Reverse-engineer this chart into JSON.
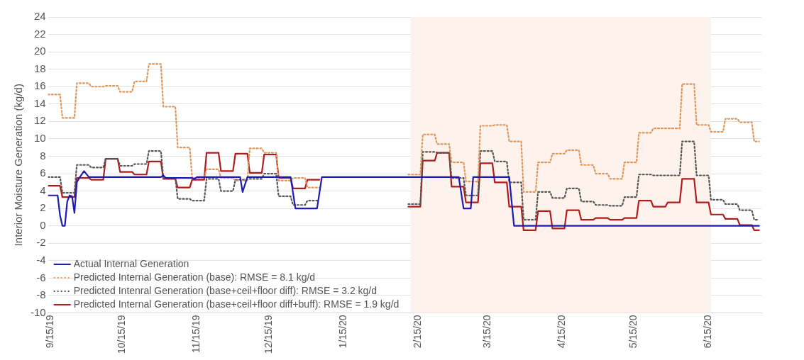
{
  "chart_data": {
    "type": "line",
    "ylabel": "Interior Moisture Generation (kg/d)",
    "xlim": [
      "2019-09-14",
      "2020-07-07"
    ],
    "xticks": [
      {
        "value": "2019-09-15",
        "label": "9/15/19"
      },
      {
        "value": "2019-10-15",
        "label": "10/15/19"
      },
      {
        "value": "2019-11-15",
        "label": "11/15/19"
      },
      {
        "value": "2019-12-15",
        "label": "12/15/19"
      },
      {
        "value": "2020-01-15",
        "label": "1/15/20"
      },
      {
        "value": "2020-02-15",
        "label": "2/15/20"
      },
      {
        "value": "2020-03-15",
        "label": "3/15/20"
      },
      {
        "value": "2020-04-15",
        "label": "4/15/20"
      },
      {
        "value": "2020-05-15",
        "label": "5/15/20"
      },
      {
        "value": "2020-06-15",
        "label": "6/15/20"
      }
    ],
    "ylim": [
      -10,
      24
    ],
    "yticks": [
      -10,
      -8,
      -6,
      -4,
      -2,
      0,
      2,
      4,
      6,
      8,
      10,
      12,
      14,
      16,
      18,
      20,
      22,
      24
    ],
    "grid": "y",
    "legend": "bottom left",
    "marker": "none",
    "bands": [
      {
        "axis": "x",
        "from": "2020-02-12",
        "to": "2020-06-16",
        "color": "#fdf3ec"
      }
    ],
    "series": [
      {
        "name": "Actual Internal Generation",
        "color": "#1c1cb4",
        "line_style": "solid",
        "x": [
          "2019-09-14",
          "2019-09-18",
          "2019-09-19",
          "2019-09-20",
          "2019-09-21",
          "2019-09-22",
          "2019-09-23",
          "2019-09-24",
          "2019-09-25",
          "2019-09-26",
          "2019-09-27",
          "2019-09-29",
          "2019-10-01",
          "2019-10-31",
          "2019-11-01",
          "2019-11-02",
          "2019-11-13",
          "2019-11-14",
          "2019-11-15",
          "2019-12-03",
          "2019-12-04",
          "2019-12-06",
          "2019-12-24",
          "2019-12-26",
          "2020-01-04",
          "2020-01-06",
          "2020-03-03",
          "2020-03-05",
          "2020-03-08",
          "2020-03-09",
          "2020-03-24",
          "2020-03-26",
          "2020-07-06"
        ],
        "values": [
          3.5,
          3.5,
          1.2,
          0,
          0,
          2.8,
          3.5,
          3.4,
          1.5,
          5.0,
          5.5,
          6.3,
          5.6,
          5.6,
          5.8,
          5.5,
          5.5,
          5.4,
          5.6,
          5.6,
          3.9,
          5.6,
          5.6,
          2.0,
          2.0,
          5.6,
          5.6,
          2.0,
          2.0,
          5.6,
          5.6,
          0,
          0
        ]
      },
      {
        "name": "Predicted Internal Generation (base): RMSE = 8.1 kg/d",
        "color": "#e0955a",
        "line_style": "dotted",
        "x": [
          "2019-09-14",
          "2019-09-19",
          "2019-09-20",
          "2019-09-25",
          "2019-09-26",
          "2019-10-01",
          "2019-10-02",
          "2019-10-07",
          "2019-10-08",
          "2019-10-13",
          "2019-10-14",
          "2019-10-19",
          "2019-10-20",
          "2019-10-25",
          "2019-10-26",
          "2019-10-31",
          "2019-11-01",
          "2019-11-06",
          "2019-11-07",
          "2019-11-12",
          "2019-11-13",
          "2019-11-18",
          "2019-11-19",
          "2019-11-24",
          "2019-11-25",
          "2019-11-30",
          "2019-12-01",
          "2019-12-06",
          "2019-12-07",
          "2019-12-12",
          "2019-12-13",
          "2019-12-18",
          "2019-12-19",
          "2019-12-24",
          "2019-12-25",
          "2019-12-30",
          "2019-12-31",
          "2020-01-05",
          "2020-01-20",
          "2020-02-11",
          "2020-02-16",
          "2020-02-17",
          "2020-02-22",
          "2020-02-23",
          "2020-02-28",
          "2020-02-29",
          "2020-03-05",
          "2020-03-06",
          "2020-03-11",
          "2020-03-12",
          "2020-03-17",
          "2020-03-18",
          "2020-03-23",
          "2020-03-24",
          "2020-03-29",
          "2020-03-30",
          "2020-04-04",
          "2020-04-05",
          "2020-04-10",
          "2020-04-11",
          "2020-04-16",
          "2020-04-17",
          "2020-04-22",
          "2020-04-23",
          "2020-04-28",
          "2020-04-29",
          "2020-05-04",
          "2020-05-05",
          "2020-05-10",
          "2020-05-11",
          "2020-05-16",
          "2020-05-17",
          "2020-05-22",
          "2020-05-23",
          "2020-05-28",
          "2020-05-29",
          "2020-06-03",
          "2020-06-04",
          "2020-06-09",
          "2020-06-10",
          "2020-06-15",
          "2020-06-16",
          "2020-06-21",
          "2020-06-22",
          "2020-06-27",
          "2020-06-28",
          "2020-07-03",
          "2020-07-04",
          "2020-07-06"
        ],
        "values": [
          15.1,
          15.1,
          12.4,
          12.4,
          16.4,
          16.4,
          16.0,
          16.0,
          16.1,
          16.1,
          15.4,
          15.4,
          16.6,
          16.6,
          18.6,
          18.6,
          13.7,
          13.7,
          9.0,
          9.0,
          5.5,
          5.5,
          6.5,
          6.5,
          5.5,
          5.5,
          5.2,
          5.2,
          8.9,
          8.9,
          8.4,
          8.4,
          5.2,
          5.2,
          5.5,
          5.5,
          4.4,
          4.4,
          null,
          5.9,
          5.9,
          10.5,
          10.5,
          9.4,
          9.4,
          7.3,
          7.3,
          5.1,
          5.1,
          11.5,
          11.5,
          11.6,
          11.6,
          9.7,
          9.7,
          3.9,
          3.9,
          7.3,
          7.3,
          8.3,
          8.3,
          8.7,
          8.7,
          7.0,
          7.0,
          6.0,
          6.0,
          5.4,
          5.4,
          7.3,
          7.3,
          10.7,
          10.7,
          11.2,
          11.2,
          11.2,
          11.2,
          16.3,
          16.3,
          11.6,
          11.6,
          10.8,
          10.8,
          12.3,
          12.3,
          11.9,
          11.9,
          9.7,
          9.7
        ]
      },
      {
        "name": "Predicted Intenral Generation (base+ceil+floor diff): RMSE = 3.2 kg/d",
        "color": "#555555",
        "line_style": "dotted",
        "x": [
          "2019-09-14",
          "2019-09-19",
          "2019-09-20",
          "2019-09-25",
          "2019-09-26",
          "2019-10-01",
          "2019-10-02",
          "2019-10-07",
          "2019-10-08",
          "2019-10-13",
          "2019-10-14",
          "2019-10-19",
          "2019-10-20",
          "2019-10-25",
          "2019-10-26",
          "2019-10-31",
          "2019-11-01",
          "2019-11-06",
          "2019-11-07",
          "2019-11-12",
          "2019-11-13",
          "2019-11-18",
          "2019-11-19",
          "2019-11-24",
          "2019-11-25",
          "2019-11-30",
          "2019-12-01",
          "2019-12-06",
          "2019-12-07",
          "2019-12-12",
          "2019-12-13",
          "2019-12-18",
          "2019-12-19",
          "2019-12-24",
          "2019-12-25",
          "2019-12-30",
          "2019-12-31",
          "2020-01-05",
          "2020-01-20",
          "2020-02-11",
          "2020-02-16",
          "2020-02-17",
          "2020-02-22",
          "2020-02-23",
          "2020-02-28",
          "2020-02-29",
          "2020-03-05",
          "2020-03-06",
          "2020-03-11",
          "2020-03-12",
          "2020-03-17",
          "2020-03-18",
          "2020-03-23",
          "2020-03-24",
          "2020-03-29",
          "2020-03-30",
          "2020-04-04",
          "2020-04-05",
          "2020-04-10",
          "2020-04-11",
          "2020-04-16",
          "2020-04-17",
          "2020-04-22",
          "2020-04-23",
          "2020-04-28",
          "2020-04-29",
          "2020-05-04",
          "2020-05-05",
          "2020-05-10",
          "2020-05-11",
          "2020-05-16",
          "2020-05-17",
          "2020-05-22",
          "2020-05-23",
          "2020-05-28",
          "2020-05-29",
          "2020-06-03",
          "2020-06-04",
          "2020-06-09",
          "2020-06-10",
          "2020-06-15",
          "2020-06-16",
          "2020-06-21",
          "2020-06-22",
          "2020-06-27",
          "2020-06-28",
          "2020-07-03",
          "2020-07-04",
          "2020-07-06"
        ],
        "values": [
          5.6,
          5.6,
          3.8,
          3.8,
          7.0,
          7.0,
          6.7,
          6.7,
          7.7,
          7.7,
          6.9,
          6.9,
          7.1,
          7.1,
          8.6,
          8.6,
          5.5,
          5.5,
          3.1,
          3.1,
          2.9,
          2.9,
          5.4,
          5.4,
          4.0,
          4.0,
          5.3,
          5.3,
          5.4,
          5.4,
          6.0,
          6.0,
          3.4,
          3.4,
          2.4,
          2.4,
          2.9,
          2.9,
          null,
          2.5,
          2.5,
          8.5,
          8.5,
          8.4,
          8.4,
          5.5,
          5.5,
          3.5,
          3.5,
          8.6,
          8.6,
          7.4,
          7.4,
          5.0,
          5.0,
          0.7,
          0.7,
          3.9,
          3.9,
          3.2,
          3.2,
          4.3,
          4.3,
          2.8,
          2.8,
          2.4,
          2.4,
          2.3,
          2.3,
          3.3,
          3.3,
          5.9,
          5.9,
          5.8,
          5.8,
          5.8,
          5.8,
          9.7,
          9.7,
          5.8,
          5.8,
          3.0,
          3.0,
          2.5,
          2.5,
          1.8,
          1.8,
          0.7,
          0.7
        ]
      },
      {
        "name": "Predicted Internal Generation (base+ceil+floor diff+buff): RMSE = 1.9 kg/d",
        "color": "#b01c1c",
        "line_style": "solid",
        "x": [
          "2019-09-14",
          "2019-09-19",
          "2019-09-20",
          "2019-09-25",
          "2019-09-26",
          "2019-10-01",
          "2019-10-02",
          "2019-10-07",
          "2019-10-08",
          "2019-10-13",
          "2019-10-14",
          "2019-10-19",
          "2019-10-20",
          "2019-10-25",
          "2019-10-26",
          "2019-10-31",
          "2019-11-01",
          "2019-11-06",
          "2019-11-07",
          "2019-11-12",
          "2019-11-13",
          "2019-11-18",
          "2019-11-19",
          "2019-11-24",
          "2019-11-25",
          "2019-11-30",
          "2019-12-01",
          "2019-12-06",
          "2019-12-07",
          "2019-12-12",
          "2019-12-13",
          "2019-12-18",
          "2019-12-19",
          "2019-12-24",
          "2019-12-25",
          "2019-12-30",
          "2019-12-31",
          "2020-01-05",
          "2020-01-20",
          "2020-02-11",
          "2020-02-16",
          "2020-02-17",
          "2020-02-22",
          "2020-02-23",
          "2020-02-28",
          "2020-02-29",
          "2020-03-05",
          "2020-03-06",
          "2020-03-11",
          "2020-03-12",
          "2020-03-17",
          "2020-03-18",
          "2020-03-23",
          "2020-03-24",
          "2020-03-29",
          "2020-03-30",
          "2020-04-04",
          "2020-04-05",
          "2020-04-10",
          "2020-04-11",
          "2020-04-16",
          "2020-04-17",
          "2020-04-22",
          "2020-04-23",
          "2020-04-28",
          "2020-04-29",
          "2020-05-04",
          "2020-05-05",
          "2020-05-10",
          "2020-05-11",
          "2020-05-16",
          "2020-05-17",
          "2020-05-22",
          "2020-05-23",
          "2020-05-28",
          "2020-05-29",
          "2020-06-03",
          "2020-06-04",
          "2020-06-09",
          "2020-06-10",
          "2020-06-15",
          "2020-06-16",
          "2020-06-21",
          "2020-06-22",
          "2020-06-27",
          "2020-06-28",
          "2020-07-03",
          "2020-07-04",
          "2020-07-06"
        ],
        "values": [
          4.6,
          4.6,
          3.3,
          3.3,
          5.5,
          5.5,
          5.3,
          5.3,
          7.7,
          7.7,
          6.2,
          6.2,
          5.9,
          5.9,
          7.4,
          7.4,
          5.4,
          5.4,
          4.4,
          4.4,
          5.3,
          5.3,
          8.4,
          8.4,
          6.3,
          6.3,
          8.3,
          8.3,
          6.1,
          6.1,
          8.2,
          8.2,
          5.5,
          5.5,
          4.3,
          4.3,
          5.3,
          5.3,
          null,
          2.2,
          2.2,
          7.5,
          7.5,
          8.4,
          8.4,
          4.5,
          4.5,
          2.7,
          2.7,
          7.2,
          7.2,
          5.0,
          5.0,
          2.2,
          2.2,
          -0.5,
          -0.5,
          1.7,
          1.7,
          -0.3,
          -0.3,
          1.8,
          1.8,
          0.7,
          0.7,
          0.9,
          0.9,
          0.7,
          0.7,
          0.9,
          0.9,
          2.9,
          2.9,
          2.2,
          2.2,
          2.7,
          2.7,
          5.4,
          5.4,
          2.7,
          2.7,
          1.3,
          1.3,
          0.8,
          0.8,
          0.1,
          0.1,
          -0.5,
          -0.5
        ]
      }
    ]
  }
}
